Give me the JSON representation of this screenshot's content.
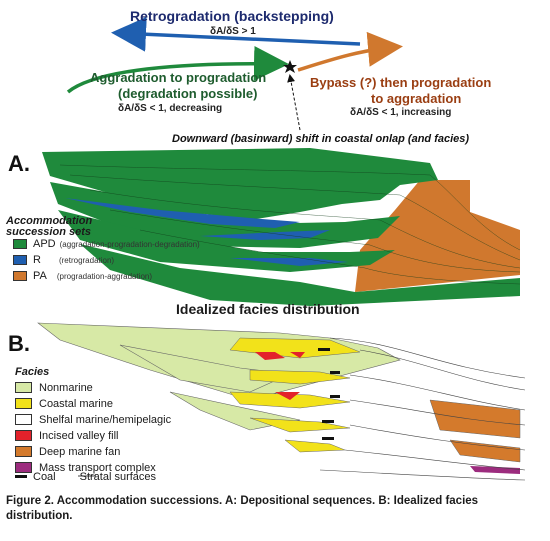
{
  "top": {
    "retrogradation_title": "Retrogradation (backstepping)",
    "retrogradation_eq": "δA/δS > 1",
    "aggradation_line1": "Aggradation to progradation",
    "aggradation_line2": "(degradation possible)",
    "aggradation_eq": "δA/δS < 1, decreasing",
    "bypass_line1": "Bypass (?) then progradation",
    "bypass_line2": "to aggradation",
    "bypass_eq": "δA/δS < 1, increasing",
    "downward_shift": "Downward (basinward) shift in coastal onlap (and facies)"
  },
  "panel_a": {
    "label": "A.",
    "legend_title_1": "Accommodation",
    "legend_title_2": "succession sets",
    "items": [
      {
        "code": "APD",
        "desc": "(aggradation-progradation-degradation)",
        "color": "#1f8a3c"
      },
      {
        "code": "R",
        "desc": "(retrogradation)",
        "color": "#1f5fb0"
      },
      {
        "code": "PA",
        "desc": "(progradation-aggradation)",
        "color": "#d0782e"
      }
    ]
  },
  "panel_b": {
    "label": "B.",
    "title": "Idealized facies distribution",
    "facies_title": "Facies",
    "facies": [
      {
        "name": "Nonmarine",
        "color": "#d7e9a6"
      },
      {
        "name": "Coastal marine",
        "color": "#f2e21a"
      },
      {
        "name": "Shelfal marine/hemipelagic",
        "color": "#ffffff"
      },
      {
        "name": "Incised valley fill",
        "color": "#e3222b"
      },
      {
        "name": "Deep marine fan",
        "color": "#d47a2c"
      },
      {
        "name": "Mass transport complex",
        "color": "#9c2c7e"
      }
    ],
    "coal_label": "Coal",
    "strata_label": "Stratal surfaces"
  },
  "caption": "Figure 2. Accommodation successions. A: Depositional sequences. B: Idealized facies distribution.",
  "colors": {
    "green": "#1f8a3c",
    "blue": "#1f5fb0",
    "orange": "#d0782e",
    "navy": "#1d2a6e"
  }
}
